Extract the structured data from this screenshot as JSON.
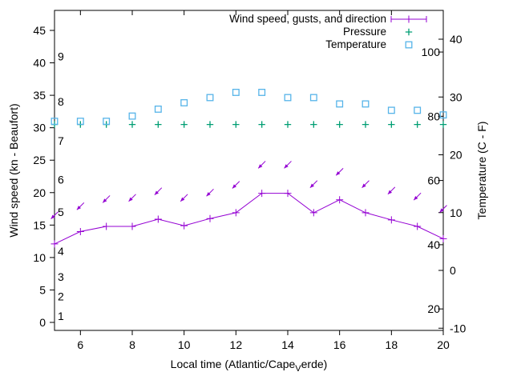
{
  "chart_data": {
    "type": "line",
    "xlabel": {
      "prefix": "Local time (Atlantic/Cape",
      "sub": "V",
      "suffix": "erde)"
    },
    "ylabel_left": "Wind speed (kn - Beaufort)",
    "ylabel_right": "Temperature (C - F)",
    "legend": {
      "position": "top-right-inside",
      "entries": [
        {
          "label": "Wind speed, gusts, and direction",
          "sample": "errorbar-line-with-plus",
          "color": "#9400d3"
        },
        {
          "label": "Pressure",
          "sample": "plus-marker",
          "color": "#009e73"
        },
        {
          "label": "Temperature",
          "sample": "open-square-marker",
          "color": "#56b4e9"
        }
      ]
    },
    "axes": {
      "x": {
        "min": 5,
        "max": 20,
        "tick_labels": [
          6,
          8,
          10,
          12,
          14,
          16,
          18,
          20
        ],
        "ticks_every_hours": 2
      },
      "y_left_wind_kn": {
        "tick_labels": [
          0,
          5,
          10,
          15,
          20,
          25,
          30,
          35,
          40,
          45
        ]
      },
      "y_left_beaufort_inner_labels": [
        {
          "label": "1",
          "kn": 1
        },
        {
          "label": "2",
          "kn": 4
        },
        {
          "label": "3",
          "kn": 7
        },
        {
          "label": "4",
          "kn": 11
        },
        {
          "label": "5",
          "kn": 17
        },
        {
          "label": "6",
          "kn": 22
        },
        {
          "label": "7",
          "kn": 28
        },
        {
          "label": "8",
          "kn": 34
        },
        {
          "label": "9",
          "kn": 41
        }
      ],
      "y_right_celsius": {
        "tick_labels": [
          -10,
          0,
          10,
          20,
          30,
          40
        ]
      },
      "y_right_fahrenheit_inner_labels": [
        20,
        40,
        60,
        80,
        100
      ]
    },
    "hours": [
      5,
      6,
      7,
      8,
      9,
      10,
      11,
      12,
      13,
      14,
      15,
      16,
      17,
      18,
      19,
      20
    ],
    "series": [
      {
        "name": "wind",
        "color": "#9400d3",
        "wind_speed_kn": [
          12.1,
          14.0,
          14.8,
          14.8,
          15.9,
          14.9,
          16.0,
          16.9,
          19.9,
          19.9,
          16.9,
          18.9,
          16.9,
          15.8,
          14.8,
          12.9
        ],
        "gust_kn": [
          16.5,
          17.9,
          19.0,
          19.2,
          20.2,
          19.2,
          20.0,
          21.2,
          24.3,
          24.3,
          21.3,
          23.2,
          21.3,
          20.3,
          19.4,
          17.5
        ],
        "arrow_points_toward_deg": [
          225,
          225,
          225,
          225,
          225,
          225,
          225,
          225,
          225,
          225,
          225,
          225,
          225,
          225,
          225,
          225
        ],
        "wind_from": "NE"
      },
      {
        "name": "pressure",
        "color": "#009e73",
        "marker": "plus",
        "plotted_flat_at_left_axis_kn": 30.5
      },
      {
        "name": "temperature",
        "color": "#56b4e9",
        "marker": "open-square",
        "values_c": [
          25.8,
          25.8,
          25.8,
          26.7,
          27.9,
          29.0,
          29.9,
          30.8,
          30.8,
          29.9,
          29.9,
          28.8,
          28.8,
          27.7,
          27.7,
          26.9
        ]
      }
    ],
    "colors": {
      "wind": "#9400d3",
      "pressure": "#009e73",
      "temperature": "#56b4e9",
      "axis": "#000000"
    }
  }
}
